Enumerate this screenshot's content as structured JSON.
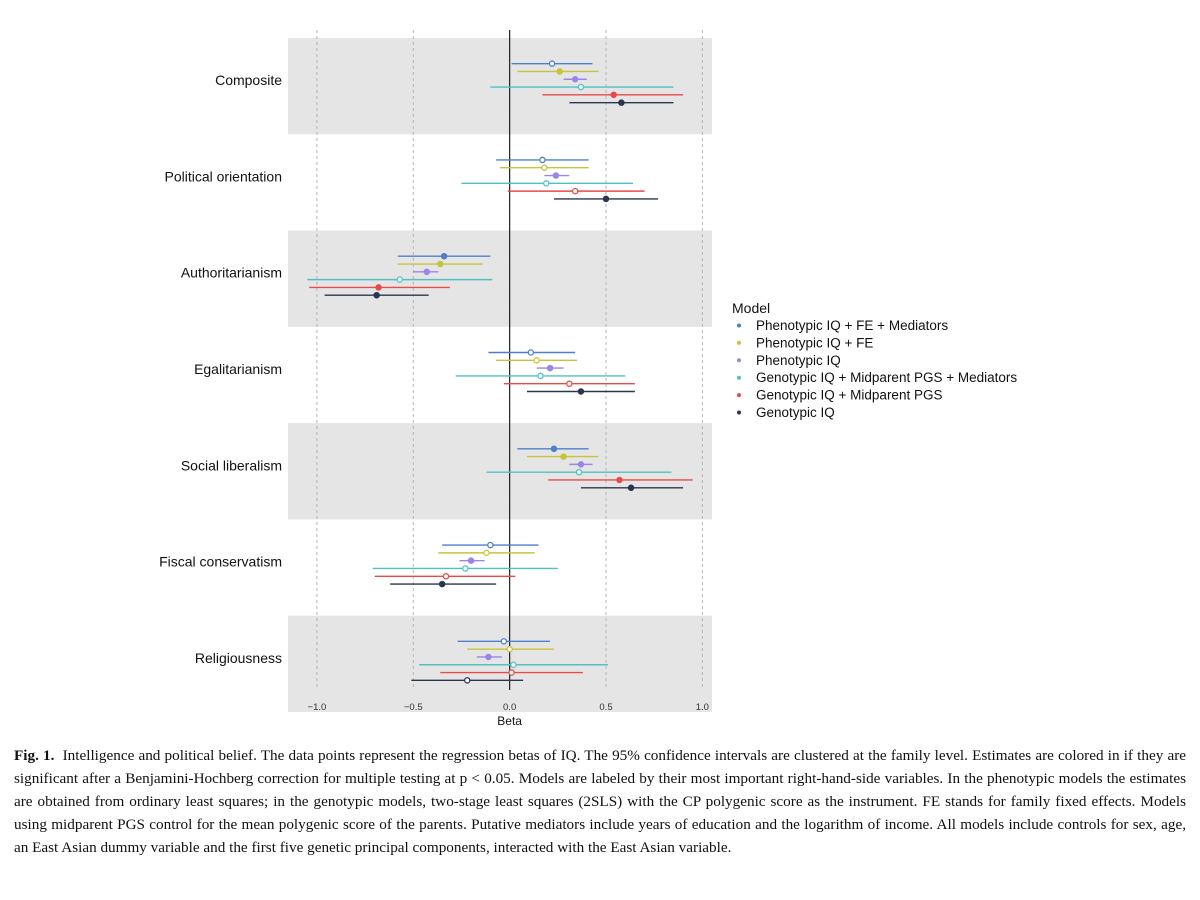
{
  "chart_data": {
    "type": "scatter",
    "subtype": "coefficient-plot",
    "xlabel": "Beta",
    "xlim": [
      -1.15,
      1.05
    ],
    "xticks": [
      -1.0,
      -0.5,
      0.0,
      0.5,
      1.0
    ],
    "xtick_labels": [
      "−1.0",
      "−0.5",
      "0.0",
      "0.5",
      "1.0"
    ],
    "grid": "vertical-dashed",
    "reference_line": 0,
    "legend_title": "Model",
    "legend_position": "right",
    "categories": [
      "Composite",
      "Political orientation",
      "Authoritarianism",
      "Egalitarianism",
      "Social liberalism",
      "Fiscal conservatism",
      "Religiousness"
    ],
    "series": [
      {
        "name": "Phenotypic IQ + FE + Mediators",
        "color": "#4f7fc9",
        "points": [
          {
            "est": 0.22,
            "lo": 0.01,
            "hi": 0.43,
            "sig": false
          },
          {
            "est": 0.17,
            "lo": -0.07,
            "hi": 0.41,
            "sig": false
          },
          {
            "est": -0.34,
            "lo": -0.58,
            "hi": -0.1,
            "sig": true
          },
          {
            "est": 0.11,
            "lo": -0.11,
            "hi": 0.34,
            "sig": false
          },
          {
            "est": 0.23,
            "lo": 0.04,
            "hi": 0.41,
            "sig": true
          },
          {
            "est": -0.1,
            "lo": -0.35,
            "hi": 0.15,
            "sig": false
          },
          {
            "est": -0.03,
            "lo": -0.27,
            "hi": 0.21,
            "sig": false
          }
        ]
      },
      {
        "name": "Phenotypic IQ + FE",
        "color": "#c8c43a",
        "points": [
          {
            "est": 0.26,
            "lo": 0.04,
            "hi": 0.46,
            "sig": true
          },
          {
            "est": 0.18,
            "lo": -0.05,
            "hi": 0.41,
            "sig": false
          },
          {
            "est": -0.36,
            "lo": -0.58,
            "hi": -0.14,
            "sig": true
          },
          {
            "est": 0.14,
            "lo": -0.07,
            "hi": 0.35,
            "sig": false
          },
          {
            "est": 0.28,
            "lo": 0.09,
            "hi": 0.46,
            "sig": true
          },
          {
            "est": -0.12,
            "lo": -0.37,
            "hi": 0.13,
            "sig": false
          },
          {
            "est": 0.0,
            "lo": -0.22,
            "hi": 0.23,
            "sig": false
          }
        ]
      },
      {
        "name": "Phenotypic IQ",
        "color": "#9b85e8",
        "points": [
          {
            "est": 0.34,
            "lo": 0.28,
            "hi": 0.4,
            "sig": true
          },
          {
            "est": 0.24,
            "lo": 0.18,
            "hi": 0.31,
            "sig": true
          },
          {
            "est": -0.43,
            "lo": -0.5,
            "hi": -0.37,
            "sig": true
          },
          {
            "est": 0.21,
            "lo": 0.14,
            "hi": 0.28,
            "sig": true
          },
          {
            "est": 0.37,
            "lo": 0.31,
            "hi": 0.43,
            "sig": true
          },
          {
            "est": -0.2,
            "lo": -0.26,
            "hi": -0.13,
            "sig": true
          },
          {
            "est": -0.11,
            "lo": -0.17,
            "hi": -0.04,
            "sig": true
          }
        ]
      },
      {
        "name": "Genotypic IQ + Midparent PGS + Mediators",
        "color": "#4ec2c2",
        "points": [
          {
            "est": 0.37,
            "lo": -0.1,
            "hi": 0.85,
            "sig": false
          },
          {
            "est": 0.19,
            "lo": -0.25,
            "hi": 0.64,
            "sig": false
          },
          {
            "est": -0.57,
            "lo": -1.05,
            "hi": -0.09,
            "sig": false
          },
          {
            "est": 0.16,
            "lo": -0.28,
            "hi": 0.6,
            "sig": false
          },
          {
            "est": 0.36,
            "lo": -0.12,
            "hi": 0.84,
            "sig": false
          },
          {
            "est": -0.23,
            "lo": -0.71,
            "hi": 0.25,
            "sig": false
          },
          {
            "est": 0.02,
            "lo": -0.47,
            "hi": 0.51,
            "sig": false
          }
        ]
      },
      {
        "name": "Genotypic IQ + Midparent PGS",
        "color": "#e84a4a",
        "points": [
          {
            "est": 0.54,
            "lo": 0.17,
            "hi": 0.9,
            "sig": true
          },
          {
            "est": 0.34,
            "lo": -0.01,
            "hi": 0.7,
            "sig": false
          },
          {
            "est": -0.68,
            "lo": -1.04,
            "hi": -0.31,
            "sig": true
          },
          {
            "est": 0.31,
            "lo": -0.03,
            "hi": 0.65,
            "sig": false
          },
          {
            "est": 0.57,
            "lo": 0.2,
            "hi": 0.95,
            "sig": true
          },
          {
            "est": -0.33,
            "lo": -0.7,
            "hi": 0.03,
            "sig": false
          },
          {
            "est": 0.01,
            "lo": -0.36,
            "hi": 0.38,
            "sig": false
          }
        ]
      },
      {
        "name": "Genotypic IQ",
        "color": "#2b3550",
        "points": [
          {
            "est": 0.58,
            "lo": 0.31,
            "hi": 0.85,
            "sig": true
          },
          {
            "est": 0.5,
            "lo": 0.23,
            "hi": 0.77,
            "sig": true
          },
          {
            "est": -0.69,
            "lo": -0.96,
            "hi": -0.42,
            "sig": true
          },
          {
            "est": 0.37,
            "lo": 0.09,
            "hi": 0.65,
            "sig": true
          },
          {
            "est": 0.63,
            "lo": 0.37,
            "hi": 0.9,
            "sig": true
          },
          {
            "est": -0.35,
            "lo": -0.62,
            "hi": -0.07,
            "sig": true
          },
          {
            "est": -0.22,
            "lo": -0.51,
            "hi": 0.07,
            "sig": false
          }
        ]
      }
    ]
  },
  "caption": {
    "label": "Fig. 1.",
    "text": "Intelligence and political belief. The data points represent the regression betas of IQ. The 95% confidence intervals are clustered at the family level. Estimates are colored in if they are significant after a Benjamini-Hochberg correction for multiple testing at p < 0.05. Models are labeled by their most important right-hand-side variables. In the phenotypic models the estimates are obtained from ordinary least squares; in the genotypic models, two-stage least squares (2SLS) with the CP polygenic score as the instrument. FE stands for family fixed effects. Models using midparent PGS control for the mean polygenic score of the parents. Putative mediators include years of education and the logarithm of income. All models include controls for sex, age, an East Asian dummy variable and the first five genetic principal components, interacted with the East Asian variable."
  }
}
